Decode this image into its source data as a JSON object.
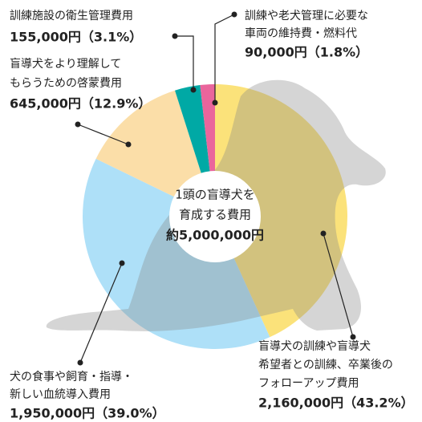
{
  "chart_data": {
    "type": "pie",
    "center_label": [
      "1頭の盲導犬を",
      "育成する費用",
      "約5,000,000円"
    ],
    "categories": [
      [
        "盲導犬の訓練や盲導犬",
        "希望者との訓練、卒業後の",
        "フォローアップ費用"
      ],
      [
        "犬の食事や飼育・指導・",
        "新しい血統導入費用"
      ],
      [
        "盲導犬をより理解して",
        "もらうための啓蒙費用"
      ],
      [
        "訓練施設の衛生管理費用"
      ],
      [
        "訓練や老犬管理に必要な",
        "車両の維持費・燃料代"
      ]
    ],
    "values": [
      2160000,
      1950000,
      645000,
      155000,
      90000
    ],
    "value_labels": [
      "2,160,000円（43.2%）",
      "1,950,000円（39.0%）",
      "645,000円（12.9%）",
      "155,000円（3.1%）",
      "90,000円（1.8%）"
    ],
    "colors": [
      "#fbe27a",
      "#aee0f8",
      "#fbdea8",
      "#00a9a5",
      "#ea659c"
    ]
  }
}
